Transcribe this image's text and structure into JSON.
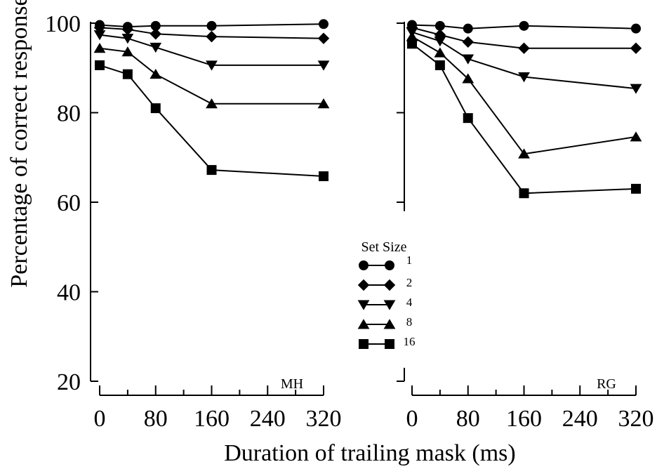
{
  "chart_data": {
    "type": "line",
    "ylabel": "Percentage of correct responses",
    "xlabel": "Duration of trailing mask (ms)",
    "ylim": [
      20,
      100
    ],
    "yticks": [
      20,
      40,
      60,
      80,
      100
    ],
    "xlim": [
      0,
      320
    ],
    "xticks": [
      0,
      80,
      160,
      240,
      320
    ],
    "legend": {
      "title": "Set Size",
      "entries": [
        {
          "label": "1",
          "marker": "circle"
        },
        {
          "label": "2",
          "marker": "diamond"
        },
        {
          "label": "4",
          "marker": "triangle-down"
        },
        {
          "label": "8",
          "marker": "triangle-up"
        },
        {
          "label": "16",
          "marker": "square"
        }
      ]
    },
    "panels": [
      {
        "label": "MH",
        "x": [
          0,
          40,
          80,
          160,
          320
        ],
        "series": [
          {
            "name": "1",
            "marker": "circle",
            "values": [
              99.6,
              99.2,
              99.4,
              99.4,
              99.8
            ]
          },
          {
            "name": "2",
            "marker": "diamond",
            "values": [
              99.0,
              98.6,
              97.6,
              97.0,
              96.6
            ]
          },
          {
            "name": "4",
            "marker": "triangle-down",
            "values": [
              97.4,
              96.6,
              94.6,
              90.6,
              90.6
            ]
          },
          {
            "name": "8",
            "marker": "triangle-up",
            "values": [
              94.4,
              93.6,
              88.6,
              82.0,
              82.0
            ]
          },
          {
            "name": "16",
            "marker": "square",
            "values": [
              90.6,
              88.6,
              81.0,
              67.2,
              65.8
            ]
          }
        ]
      },
      {
        "label": "RG",
        "x": [
          0,
          40,
          80,
          160,
          320
        ],
        "series": [
          {
            "name": "1",
            "marker": "circle",
            "values": [
              99.6,
              99.4,
              98.8,
              99.4,
              98.8
            ]
          },
          {
            "name": "2",
            "marker": "diamond",
            "values": [
              99.0,
              97.4,
              95.8,
              94.4,
              94.4
            ]
          },
          {
            "name": "4",
            "marker": "triangle-down",
            "values": [
              98.0,
              96.0,
              92.0,
              88.0,
              85.4
            ]
          },
          {
            "name": "8",
            "marker": "triangle-up",
            "values": [
              97.0,
              93.4,
              87.6,
              70.8,
              74.6
            ]
          },
          {
            "name": "16",
            "marker": "square",
            "values": [
              95.4,
              90.6,
              78.8,
              62.0,
              63.0
            ]
          }
        ]
      }
    ]
  }
}
